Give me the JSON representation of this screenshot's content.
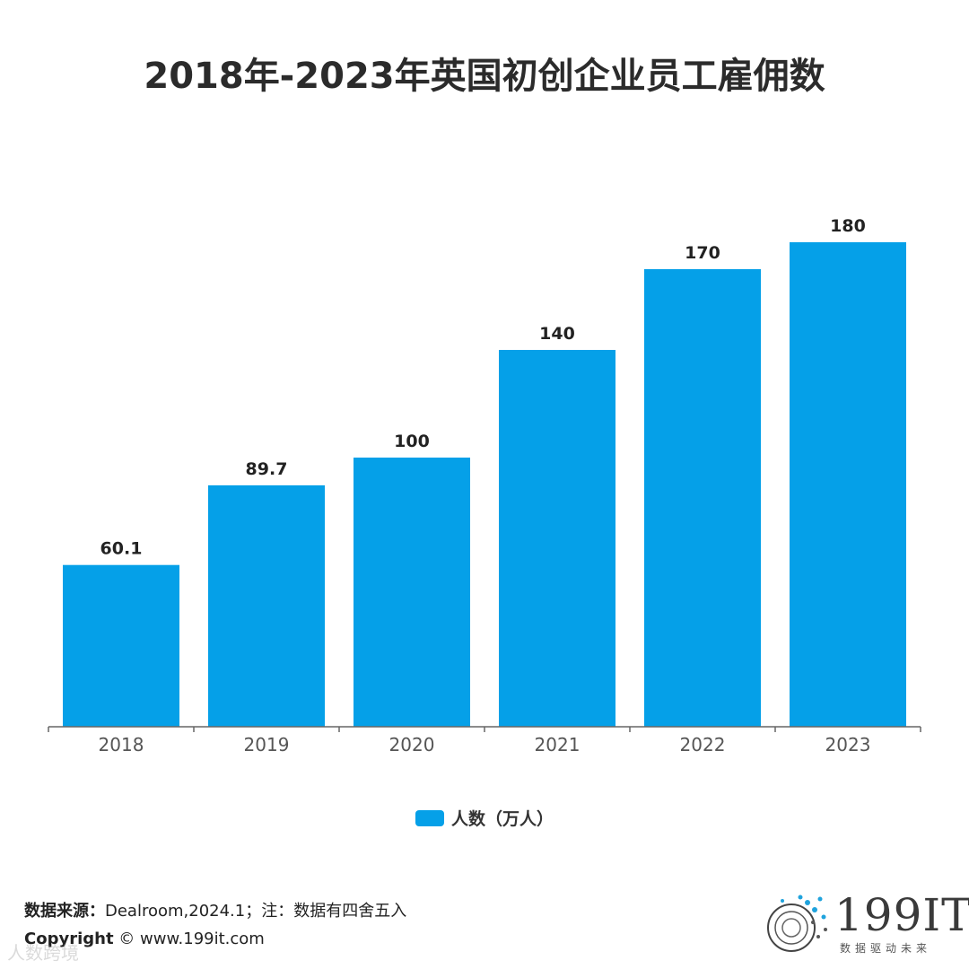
{
  "title": "2018年-2023年英国初创企业员工雇佣数",
  "chart_data": {
    "type": "bar",
    "categories": [
      "2018",
      "2019",
      "2020",
      "2021",
      "2022",
      "2023"
    ],
    "series": [
      {
        "name": "人数（万人）",
        "values": [
          60.1,
          89.7,
          100,
          140,
          170,
          180
        ],
        "color": "#05a0e8"
      }
    ],
    "data_labels": [
      "60.1",
      "89.7",
      "100",
      "140",
      "170",
      "180"
    ],
    "ylim": [
      0,
      180
    ],
    "grid": false,
    "legend_position": "bottom"
  },
  "legend": {
    "label": "人数（万人）",
    "color": "#05a0e8"
  },
  "footer": {
    "source_label": "数据来源：",
    "source_text": "Dealroom,2024.1；注：数据有四舍五入",
    "copyright_label": "Copyright",
    "copyright_text": "©  www.199it.com"
  },
  "watermark": "人数跨境",
  "logo": {
    "text": "199IT",
    "subtitle": "数据驱动未来"
  }
}
